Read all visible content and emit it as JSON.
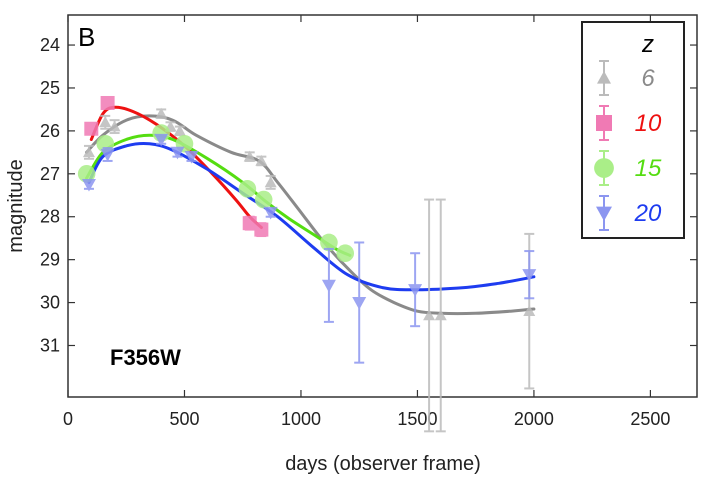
{
  "chart_data": {
    "type": "scatter",
    "panel_label": "B",
    "annotation": "F356W",
    "xlabel": "days (observer frame)",
    "ylabel": "magnitude",
    "xlim": [
      0,
      2700
    ],
    "ylim": [
      32.2,
      23.3
    ],
    "y_inverted": true,
    "xticks": [
      0,
      500,
      1000,
      1500,
      2000,
      2500
    ],
    "yticks": [
      24,
      25,
      26,
      27,
      28,
      29,
      30,
      31
    ],
    "grid": false,
    "legend": {
      "title": "z",
      "placement": "top-right"
    },
    "series": [
      {
        "name": "6",
        "color": "#bbbbbb",
        "curve_color": "#8a8a8a",
        "marker": "triangle-up",
        "points": [
          {
            "x": 90,
            "y": 26.5,
            "err": 0.15
          },
          {
            "x": 160,
            "y": 25.8,
            "err": 0.15
          },
          {
            "x": 200,
            "y": 25.9,
            "err": 0.15
          },
          {
            "x": 400,
            "y": 25.6,
            "err": 0.1
          },
          {
            "x": 440,
            "y": 25.9,
            "err": 0.1
          },
          {
            "x": 480,
            "y": 26.0,
            "err": 0.1
          },
          {
            "x": 780,
            "y": 26.6,
            "err": 0.1
          },
          {
            "x": 830,
            "y": 26.7,
            "err": 0.1
          },
          {
            "x": 870,
            "y": 27.2,
            "err": 0.15
          },
          {
            "x": 1550,
            "y": 30.3,
            "err": 2.7
          },
          {
            "x": 1600,
            "y": 30.3,
            "err": 2.7
          },
          {
            "x": 1980,
            "y": 30.2,
            "err": 1.8
          }
        ],
        "curve": [
          [
            80,
            26.5
          ],
          [
            150,
            26.1
          ],
          [
            250,
            25.75
          ],
          [
            350,
            25.65
          ],
          [
            450,
            25.75
          ],
          [
            550,
            26.1
          ],
          [
            700,
            26.5
          ],
          [
            820,
            26.7
          ],
          [
            900,
            27.2
          ],
          [
            1000,
            27.9
          ],
          [
            1100,
            28.6
          ],
          [
            1200,
            29.2
          ],
          [
            1300,
            29.7
          ],
          [
            1400,
            30.0
          ],
          [
            1500,
            30.2
          ],
          [
            1600,
            30.25
          ],
          [
            1750,
            30.25
          ],
          [
            1900,
            30.2
          ],
          [
            2000,
            30.15
          ]
        ]
      },
      {
        "name": "10",
        "color": "#f07ab4",
        "curve_color": "#ee1111",
        "marker": "square",
        "points": [
          {
            "x": 100,
            "y": 25.95,
            "err": 0.1
          },
          {
            "x": 170,
            "y": 25.35,
            "err": 0.1
          },
          {
            "x": 780,
            "y": 28.15,
            "err": 0.15
          },
          {
            "x": 830,
            "y": 28.3,
            "err": 0.15
          }
        ],
        "curve": [
          [
            100,
            26.2
          ],
          [
            150,
            25.6
          ],
          [
            200,
            25.45
          ],
          [
            280,
            25.55
          ],
          [
            380,
            25.85
          ],
          [
            500,
            26.35
          ],
          [
            620,
            27.0
          ],
          [
            720,
            27.6
          ],
          [
            780,
            28.0
          ],
          [
            830,
            28.25
          ]
        ]
      },
      {
        "name": "15",
        "color": "#aaee88",
        "curve_color": "#55dd11",
        "marker": "circle",
        "points": [
          {
            "x": 80,
            "y": 27.0,
            "err": 0.1
          },
          {
            "x": 160,
            "y": 26.3,
            "err": 0.1
          },
          {
            "x": 400,
            "y": 26.05,
            "err": 0.1
          },
          {
            "x": 500,
            "y": 26.3,
            "err": 0.1
          },
          {
            "x": 770,
            "y": 27.35,
            "err": 0.1
          },
          {
            "x": 840,
            "y": 27.6,
            "err": 0.1
          },
          {
            "x": 1120,
            "y": 28.6,
            "err": 0.15
          },
          {
            "x": 1190,
            "y": 28.85,
            "err": 0.15
          }
        ],
        "curve": [
          [
            80,
            27.1
          ],
          [
            150,
            26.5
          ],
          [
            250,
            26.2
          ],
          [
            350,
            26.1
          ],
          [
            450,
            26.2
          ],
          [
            600,
            26.65
          ],
          [
            750,
            27.2
          ],
          [
            850,
            27.65
          ],
          [
            950,
            28.05
          ],
          [
            1050,
            28.4
          ],
          [
            1150,
            28.75
          ],
          [
            1210,
            28.9
          ]
        ]
      },
      {
        "name": "20",
        "color": "#8c96f0",
        "curve_color": "#1e3cf0",
        "marker": "triangle-down",
        "points": [
          {
            "x": 90,
            "y": 27.25,
            "err": 0.1
          },
          {
            "x": 170,
            "y": 26.55,
            "err": 0.15
          },
          {
            "x": 400,
            "y": 26.2,
            "err": 0.1
          },
          {
            "x": 470,
            "y": 26.5,
            "err": 0.1
          },
          {
            "x": 530,
            "y": 26.6,
            "err": 0.1
          },
          {
            "x": 870,
            "y": 27.9,
            "err": 0.1
          },
          {
            "x": 1120,
            "y": 29.6,
            "err": 0.85
          },
          {
            "x": 1250,
            "y": 30.0,
            "err": 1.4
          },
          {
            "x": 1490,
            "y": 29.7,
            "err": 0.85
          },
          {
            "x": 1980,
            "y": 29.35,
            "err": 0.55
          }
        ],
        "curve": [
          [
            90,
            27.2
          ],
          [
            150,
            26.6
          ],
          [
            250,
            26.35
          ],
          [
            350,
            26.3
          ],
          [
            450,
            26.45
          ],
          [
            600,
            26.9
          ],
          [
            750,
            27.45
          ],
          [
            900,
            28.0
          ],
          [
            1050,
            28.7
          ],
          [
            1200,
            29.35
          ],
          [
            1350,
            29.65
          ],
          [
            1500,
            29.7
          ],
          [
            1700,
            29.65
          ],
          [
            1850,
            29.55
          ],
          [
            2000,
            29.4
          ]
        ]
      }
    ]
  }
}
